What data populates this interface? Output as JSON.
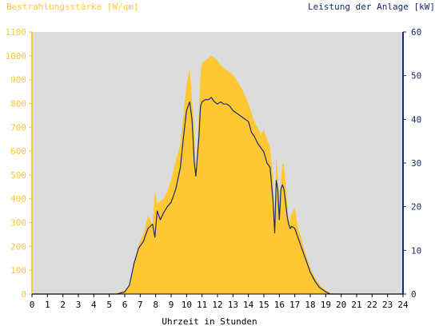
{
  "chart_data": {
    "type": "area",
    "title_left": "Bestrahlungsstärke [W/qm]",
    "title_right": "Leistung der Anlage [kW]",
    "xlabel": "Uhrzeit in Stunden",
    "xlim": [
      0,
      24
    ],
    "x_ticks": [
      "0",
      "1",
      "2",
      "3",
      "4",
      "5",
      "6",
      "7",
      "8",
      "9",
      "10",
      "11",
      "12",
      "13",
      "14",
      "15",
      "16",
      "17",
      "18",
      "19",
      "20",
      "21",
      "22",
      "23",
      "24"
    ],
    "ylim_left": [
      0,
      1100
    ],
    "y_ticks_left": [
      "0",
      "100",
      "200",
      "300",
      "400",
      "500",
      "600",
      "700",
      "800",
      "900",
      "1000",
      "1100"
    ],
    "ylim_right": [
      0,
      60
    ],
    "y_ticks_right": [
      "0",
      "10",
      "20",
      "30",
      "40",
      "50",
      "60"
    ],
    "grid": false,
    "colors": {
      "background": "#dcdcdc",
      "irradiance_fill": "#ffc832",
      "power_line": "#1a2a6c",
      "left_axis": "#ffc832",
      "right_axis": "#1a2a6c",
      "xlabel": "#000000"
    },
    "series": [
      {
        "axis": "left",
        "kind": "area",
        "x": [
          0,
          5.0,
          5.5,
          6.0,
          6.3,
          6.6,
          6.9,
          7.2,
          7.5,
          7.8,
          7.95,
          8.1,
          8.3,
          8.5,
          8.75,
          9.0,
          9.3,
          9.6,
          9.8,
          10.0,
          10.2,
          10.35,
          10.5,
          10.6,
          10.8,
          10.9,
          11.0,
          11.2,
          11.4,
          11.6,
          11.8,
          12.0,
          12.2,
          12.4,
          12.6,
          12.8,
          13.0,
          13.2,
          13.4,
          13.6,
          13.8,
          14.0,
          14.2,
          14.4,
          14.6,
          14.8,
          15.0,
          15.2,
          15.4,
          15.6,
          15.7,
          15.8,
          15.9,
          16.0,
          16.1,
          16.2,
          16.3,
          16.4,
          16.5,
          16.6,
          16.7,
          16.8,
          17.0,
          17.2,
          17.4,
          17.6,
          17.8,
          18.0,
          18.3,
          18.6,
          19.0,
          19.3,
          19.6,
          19.9,
          20.0,
          24
        ],
        "values": [
          0,
          0,
          5,
          15,
          40,
          130,
          210,
          250,
          330,
          290,
          440,
          380,
          390,
          400,
          430,
          480,
          560,
          630,
          760,
          880,
          950,
          820,
          700,
          500,
          760,
          920,
          970,
          980,
          990,
          1000,
          990,
          980,
          960,
          950,
          940,
          930,
          920,
          900,
          880,
          860,
          830,
          800,
          760,
          720,
          700,
          670,
          690,
          650,
          620,
          480,
          280,
          580,
          500,
          350,
          480,
          550,
          540,
          470,
          400,
          300,
          320,
          340,
          360,
          280,
          240,
          190,
          150,
          110,
          70,
          40,
          15,
          5,
          2,
          0,
          0,
          0
        ]
      },
      {
        "axis": "right",
        "kind": "line",
        "x": [
          0,
          5.0,
          5.5,
          6.0,
          6.3,
          6.6,
          6.9,
          7.2,
          7.5,
          7.8,
          7.95,
          8.1,
          8.3,
          8.5,
          8.75,
          9.0,
          9.3,
          9.6,
          9.8,
          10.0,
          10.2,
          10.35,
          10.5,
          10.6,
          10.8,
          10.9,
          11.0,
          11.2,
          11.4,
          11.6,
          11.8,
          12.0,
          12.2,
          12.4,
          12.6,
          12.8,
          13.0,
          13.2,
          13.4,
          13.6,
          13.8,
          14.0,
          14.2,
          14.4,
          14.6,
          14.8,
          15.0,
          15.2,
          15.4,
          15.6,
          15.7,
          15.8,
          15.9,
          16.0,
          16.1,
          16.2,
          16.3,
          16.4,
          16.5,
          16.6,
          16.7,
          16.8,
          17.0,
          17.2,
          17.4,
          17.6,
          17.8,
          18.0,
          18.3,
          18.6,
          19.0,
          19.3,
          19.6,
          19.9,
          20.0,
          24
        ],
        "values": [
          0,
          0,
          0,
          0.5,
          2,
          7,
          10.5,
          12,
          15,
          16,
          13,
          19,
          17,
          18.5,
          20,
          21,
          24,
          29,
          36,
          42,
          44,
          40,
          30,
          27,
          36,
          43,
          44,
          44.5,
          44.5,
          45,
          44,
          43.5,
          44,
          43.5,
          43.5,
          43,
          42,
          41.5,
          41,
          40.5,
          40,
          39.5,
          37,
          36,
          34.5,
          33.5,
          32.5,
          30,
          29,
          21,
          14,
          26,
          24,
          17,
          24,
          25,
          24,
          21,
          18,
          16,
          15,
          15.5,
          15,
          13,
          11,
          9,
          7,
          5,
          3,
          1.5,
          0.5,
          0,
          0,
          0,
          0,
          0
        ]
      }
    ]
  }
}
